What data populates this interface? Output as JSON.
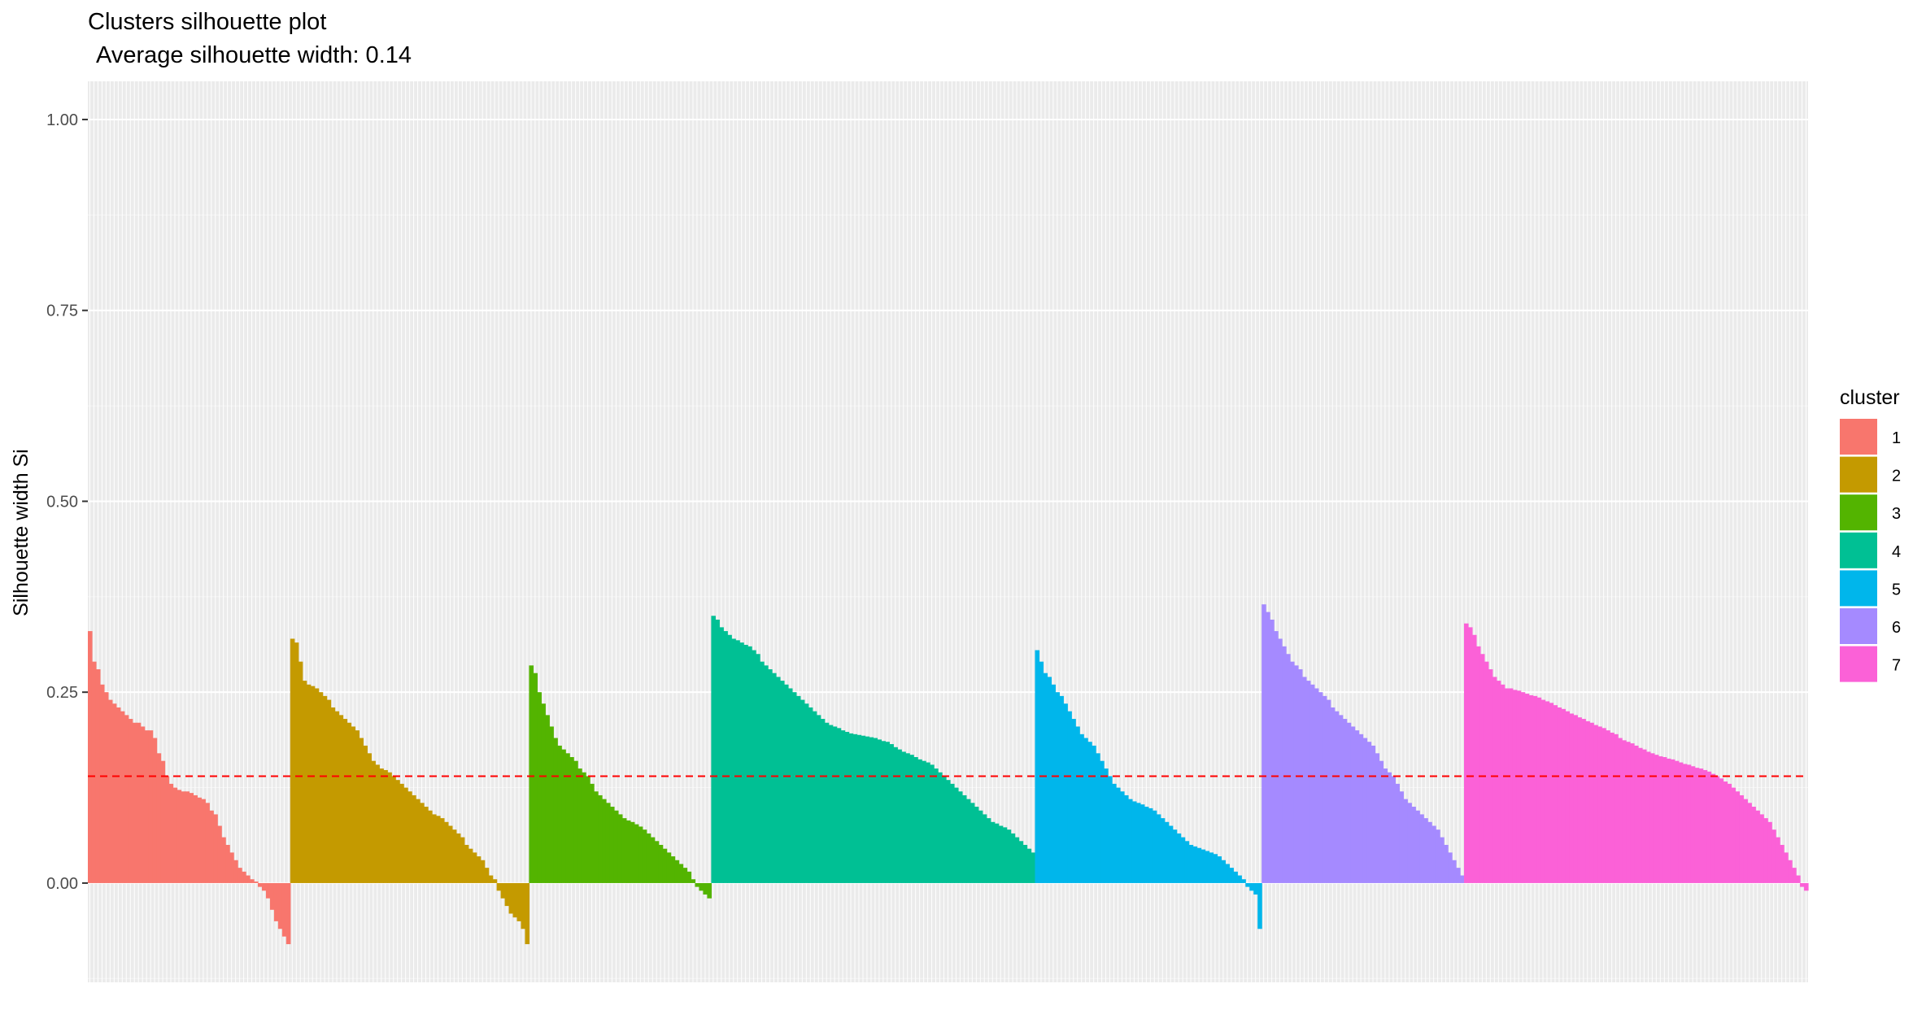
{
  "chart_data": {
    "type": "bar",
    "title": "Clusters silhouette plot",
    "subtitle": "Average silhouette width: 0.14",
    "xlabel": "",
    "ylabel": "Silhouette width Si",
    "ylim": [
      -0.13,
      1.05
    ],
    "yticks": [
      "0.00",
      "0.25",
      "0.50",
      "0.75",
      "1.00"
    ],
    "ytick_values": [
      0,
      0.25,
      0.5,
      0.75,
      1.0
    ],
    "grid": true,
    "reference_line": {
      "value": 0.14,
      "color": "#ff0000",
      "style": "dashed"
    },
    "legend": {
      "title": "cluster",
      "position": "right"
    },
    "series": [
      {
        "name": "1",
        "color": "#F8766D",
        "values": [
          0.33,
          0.29,
          0.28,
          0.26,
          0.25,
          0.24,
          0.235,
          0.23,
          0.225,
          0.22,
          0.215,
          0.21,
          0.21,
          0.205,
          0.2,
          0.2,
          0.19,
          0.17,
          0.16,
          0.14,
          0.13,
          0.125,
          0.122,
          0.12,
          0.12,
          0.118,
          0.115,
          0.112,
          0.11,
          0.105,
          0.095,
          0.09,
          0.075,
          0.06,
          0.05,
          0.04,
          0.03,
          0.02,
          0.015,
          0.01,
          0.005,
          0.002,
          -0.005,
          -0.01,
          -0.02,
          -0.035,
          -0.05,
          -0.06,
          -0.07,
          -0.08
        ]
      },
      {
        "name": "2",
        "color": "#C49A00",
        "values": [
          0.32,
          0.315,
          0.29,
          0.265,
          0.26,
          0.258,
          0.255,
          0.25,
          0.245,
          0.24,
          0.23,
          0.225,
          0.22,
          0.215,
          0.21,
          0.205,
          0.2,
          0.19,
          0.18,
          0.17,
          0.16,
          0.155,
          0.15,
          0.148,
          0.145,
          0.14,
          0.135,
          0.13,
          0.125,
          0.12,
          0.115,
          0.11,
          0.105,
          0.1,
          0.095,
          0.09,
          0.088,
          0.085,
          0.08,
          0.075,
          0.07,
          0.065,
          0.06,
          0.05,
          0.045,
          0.04,
          0.035,
          0.03,
          0.02,
          0.01,
          0.005,
          -0.01,
          -0.02,
          -0.03,
          -0.04,
          -0.045,
          -0.05,
          -0.06,
          -0.08
        ]
      },
      {
        "name": "3",
        "color": "#53B400",
        "values": [
          0.285,
          0.275,
          0.25,
          0.235,
          0.22,
          0.205,
          0.19,
          0.18,
          0.175,
          0.17,
          0.165,
          0.16,
          0.15,
          0.145,
          0.14,
          0.13,
          0.12,
          0.115,
          0.11,
          0.105,
          0.1,
          0.095,
          0.09,
          0.085,
          0.082,
          0.08,
          0.077,
          0.074,
          0.07,
          0.065,
          0.06,
          0.055,
          0.05,
          0.045,
          0.04,
          0.035,
          0.03,
          0.025,
          0.02,
          0.015,
          0.005,
          -0.005,
          -0.01,
          -0.015,
          -0.02
        ]
      },
      {
        "name": "4",
        "color": "#00C094",
        "values": [
          0.35,
          0.345,
          0.335,
          0.33,
          0.325,
          0.32,
          0.318,
          0.315,
          0.312,
          0.31,
          0.305,
          0.3,
          0.29,
          0.285,
          0.28,
          0.275,
          0.27,
          0.265,
          0.26,
          0.255,
          0.25,
          0.245,
          0.24,
          0.235,
          0.23,
          0.225,
          0.22,
          0.215,
          0.21,
          0.207,
          0.205,
          0.203,
          0.2,
          0.198,
          0.196,
          0.195,
          0.194,
          0.193,
          0.192,
          0.191,
          0.19,
          0.188,
          0.186,
          0.185,
          0.182,
          0.178,
          0.175,
          0.172,
          0.17,
          0.168,
          0.165,
          0.162,
          0.16,
          0.158,
          0.155,
          0.15,
          0.145,
          0.14,
          0.135,
          0.13,
          0.125,
          0.12,
          0.115,
          0.11,
          0.105,
          0.1,
          0.095,
          0.09,
          0.085,
          0.08,
          0.078,
          0.075,
          0.073,
          0.07,
          0.065,
          0.06,
          0.055,
          0.05,
          0.045,
          0.04
        ]
      },
      {
        "name": "5",
        "color": "#00B6EB",
        "values": [
          0.305,
          0.29,
          0.275,
          0.27,
          0.26,
          0.25,
          0.245,
          0.235,
          0.225,
          0.215,
          0.205,
          0.195,
          0.19,
          0.185,
          0.18,
          0.17,
          0.16,
          0.15,
          0.14,
          0.13,
          0.125,
          0.12,
          0.115,
          0.11,
          0.107,
          0.105,
          0.103,
          0.1,
          0.098,
          0.095,
          0.09,
          0.085,
          0.08,
          0.075,
          0.07,
          0.065,
          0.06,
          0.055,
          0.05,
          0.048,
          0.046,
          0.044,
          0.042,
          0.04,
          0.038,
          0.035,
          0.03,
          0.025,
          0.02,
          0.015,
          0.01,
          0.005,
          -0.005,
          -0.01,
          -0.015,
          -0.06
        ]
      },
      {
        "name": "6",
        "color": "#A58AFF",
        "values": [
          0.365,
          0.355,
          0.345,
          0.33,
          0.32,
          0.31,
          0.3,
          0.29,
          0.285,
          0.28,
          0.27,
          0.265,
          0.26,
          0.255,
          0.25,
          0.245,
          0.24,
          0.23,
          0.225,
          0.22,
          0.215,
          0.21,
          0.205,
          0.2,
          0.195,
          0.19,
          0.185,
          0.18,
          0.17,
          0.16,
          0.15,
          0.145,
          0.14,
          0.13,
          0.12,
          0.11,
          0.105,
          0.1,
          0.095,
          0.09,
          0.085,
          0.08,
          0.075,
          0.07,
          0.06,
          0.05,
          0.04,
          0.03,
          0.02,
          0.01
        ]
      },
      {
        "name": "7",
        "color": "#FB61D7",
        "values": [
          0.34,
          0.335,
          0.325,
          0.31,
          0.3,
          0.29,
          0.28,
          0.27,
          0.265,
          0.26,
          0.255,
          0.255,
          0.253,
          0.252,
          0.25,
          0.248,
          0.246,
          0.245,
          0.243,
          0.24,
          0.238,
          0.236,
          0.233,
          0.23,
          0.228,
          0.225,
          0.222,
          0.22,
          0.217,
          0.215,
          0.212,
          0.21,
          0.207,
          0.205,
          0.203,
          0.2,
          0.197,
          0.195,
          0.19,
          0.187,
          0.185,
          0.183,
          0.18,
          0.177,
          0.175,
          0.172,
          0.17,
          0.168,
          0.166,
          0.165,
          0.163,
          0.162,
          0.16,
          0.158,
          0.156,
          0.155,
          0.153,
          0.151,
          0.15,
          0.148,
          0.146,
          0.143,
          0.14,
          0.137,
          0.133,
          0.13,
          0.125,
          0.12,
          0.115,
          0.11,
          0.105,
          0.1,
          0.095,
          0.09,
          0.085,
          0.08,
          0.07,
          0.06,
          0.05,
          0.04,
          0.03,
          0.02,
          0.01,
          -0.005,
          -0.01
        ]
      }
    ]
  }
}
